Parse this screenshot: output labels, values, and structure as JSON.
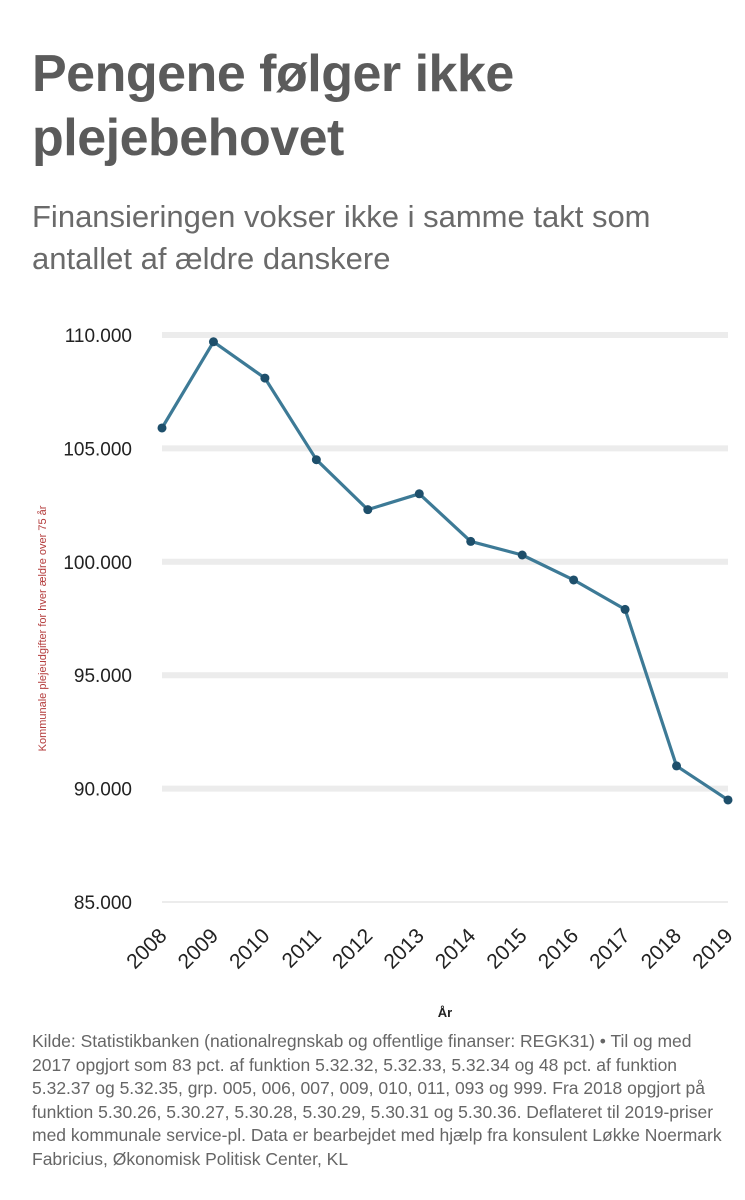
{
  "title": "Pengene følger ikke plejebehovet",
  "subtitle": "Finansieringen vokser ikke i samme takt som antallet af ældre danskere",
  "source": "Kilde: Statistikbanken (nationalregnskab og offentlige finanser: REGK31) • Til og med 2017 opgjort som 83 pct. af funktion 5.32.32, 5.32.33, 5.32.34 og 48 pct. af funktion 5.32.37 og 5.32.35, grp. 005, 006, 007, 009, 010, 011, 093 og 999. Fra 2018 opgjort på funktion 5.30.26, 5.30.27, 5.30.28, 5.30.29, 5.30.31 og 5.30.36. Deflateret til 2019-priser med kommunale service-pl. Data er bearbejdet med hjælp fra konsulent Løkke Noermark Fabricius, Økonomisk Politisk Center, KL",
  "colors": {
    "line": "#3d7a96",
    "marker": "#1e4f6b",
    "grid": "#ececec"
  },
  "chart_data": {
    "type": "line",
    "xlabel": "År",
    "ylabel": "Kommunale plejeudgifter for hver ældre over 75 år",
    "ylim": [
      85000,
      110000
    ],
    "yticks": [
      85000,
      90000,
      95000,
      100000,
      105000,
      110000
    ],
    "ytick_labels": [
      "85.000",
      "90.000",
      "95.000",
      "100.000",
      "105.000",
      "110.000"
    ],
    "grid": true,
    "x": [
      "2008",
      "2009",
      "2010",
      "2011",
      "2012",
      "2013",
      "2014",
      "2015",
      "2016",
      "2017",
      "2018",
      "2019"
    ],
    "values": [
      105900,
      109700,
      108100,
      104500,
      102300,
      103000,
      100900,
      100300,
      99200,
      97900,
      91000,
      89500
    ]
  }
}
